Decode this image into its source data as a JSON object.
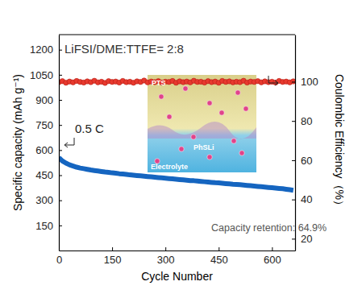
{
  "chart_data": {
    "type": "line",
    "x_label": "Cycle Number",
    "y_label": "Specific capacity (mAh g⁻¹)",
    "y2_label": "Coulombic Efficiency（%）",
    "x": [
      0,
      10,
      20,
      30,
      40,
      50,
      60,
      70,
      80,
      90,
      100,
      110,
      120,
      130,
      140,
      150,
      160,
      170,
      180,
      190,
      200,
      210,
      220,
      230,
      240,
      250,
      260,
      270,
      280,
      290,
      300,
      310,
      320,
      330,
      340,
      350,
      360,
      370,
      380,
      390,
      400,
      410,
      420,
      430,
      440,
      450,
      460,
      470,
      480,
      490,
      500,
      510,
      520,
      530,
      540,
      550,
      560,
      570,
      580,
      590,
      600,
      610,
      620,
      630,
      640,
      650,
      660
    ],
    "xlim": [
      0,
      665
    ],
    "xticks": [
      0,
      150,
      300,
      450,
      600
    ],
    "ylim": [
      0,
      1290
    ],
    "yticks": [
      150,
      300,
      450,
      600,
      750,
      900,
      1050,
      1200
    ],
    "y2lim": [
      14,
      124
    ],
    "y2ticks": [
      20,
      40,
      60,
      80,
      100
    ],
    "grid": false,
    "series": [
      {
        "type": "line",
        "color": "#1565c0",
        "line_style": "solid",
        "values": [
          555,
          535,
          522,
          512,
          505,
          498,
          493,
          489,
          485,
          481,
          478,
          475,
          472,
          469,
          467,
          464,
          462,
          459,
          457,
          455,
          452,
          450,
          448,
          446,
          444,
          442,
          440,
          438,
          436,
          434,
          432,
          430,
          428,
          426,
          424,
          422,
          420,
          418,
          417,
          415,
          413,
          411,
          409,
          407,
          405,
          404,
          402,
          400,
          398,
          396,
          395,
          393,
          391,
          389,
          387,
          385,
          383,
          381,
          379,
          377,
          375,
          373,
          371,
          369,
          366,
          363,
          360
        ]
      },
      {
        "type": "scatter",
        "axis": "y2",
        "color": "#e8392e",
        "marker": "circle",
        "values": [
          99.8,
          100.3,
          99.5,
          100.1,
          99.7,
          100.4,
          99.9,
          99.6,
          100.2,
          99.8,
          100.5,
          99.7,
          100.0,
          99.4,
          100.3,
          99.9,
          100.1,
          99.6,
          100.4,
          99.8,
          100.0,
          99.5,
          100.2,
          99.9,
          100.6,
          99.7,
          100.1,
          99.8,
          100.3,
          99.6,
          100.0,
          99.9,
          100.4,
          99.5,
          100.2,
          99.8,
          100.1,
          99.7,
          100.5,
          99.9,
          100.0,
          99.6,
          100.3,
          99.8,
          100.1,
          99.5,
          100.4,
          99.9,
          100.2,
          99.7,
          100.0,
          99.8,
          100.5,
          99.6,
          100.1,
          99.9,
          100.3,
          99.7,
          100.2,
          99.8,
          100.0,
          99.6,
          100.4,
          99.9,
          100.1,
          99.7,
          100.2
        ]
      }
    ],
    "annotations": [
      "LiFSI/DME:TTFE= 2:8",
      "0.5 C",
      "Capacity retention: 64.9%",
      "PTS",
      "PhSLi",
      "Electrolyte"
    ]
  }
}
